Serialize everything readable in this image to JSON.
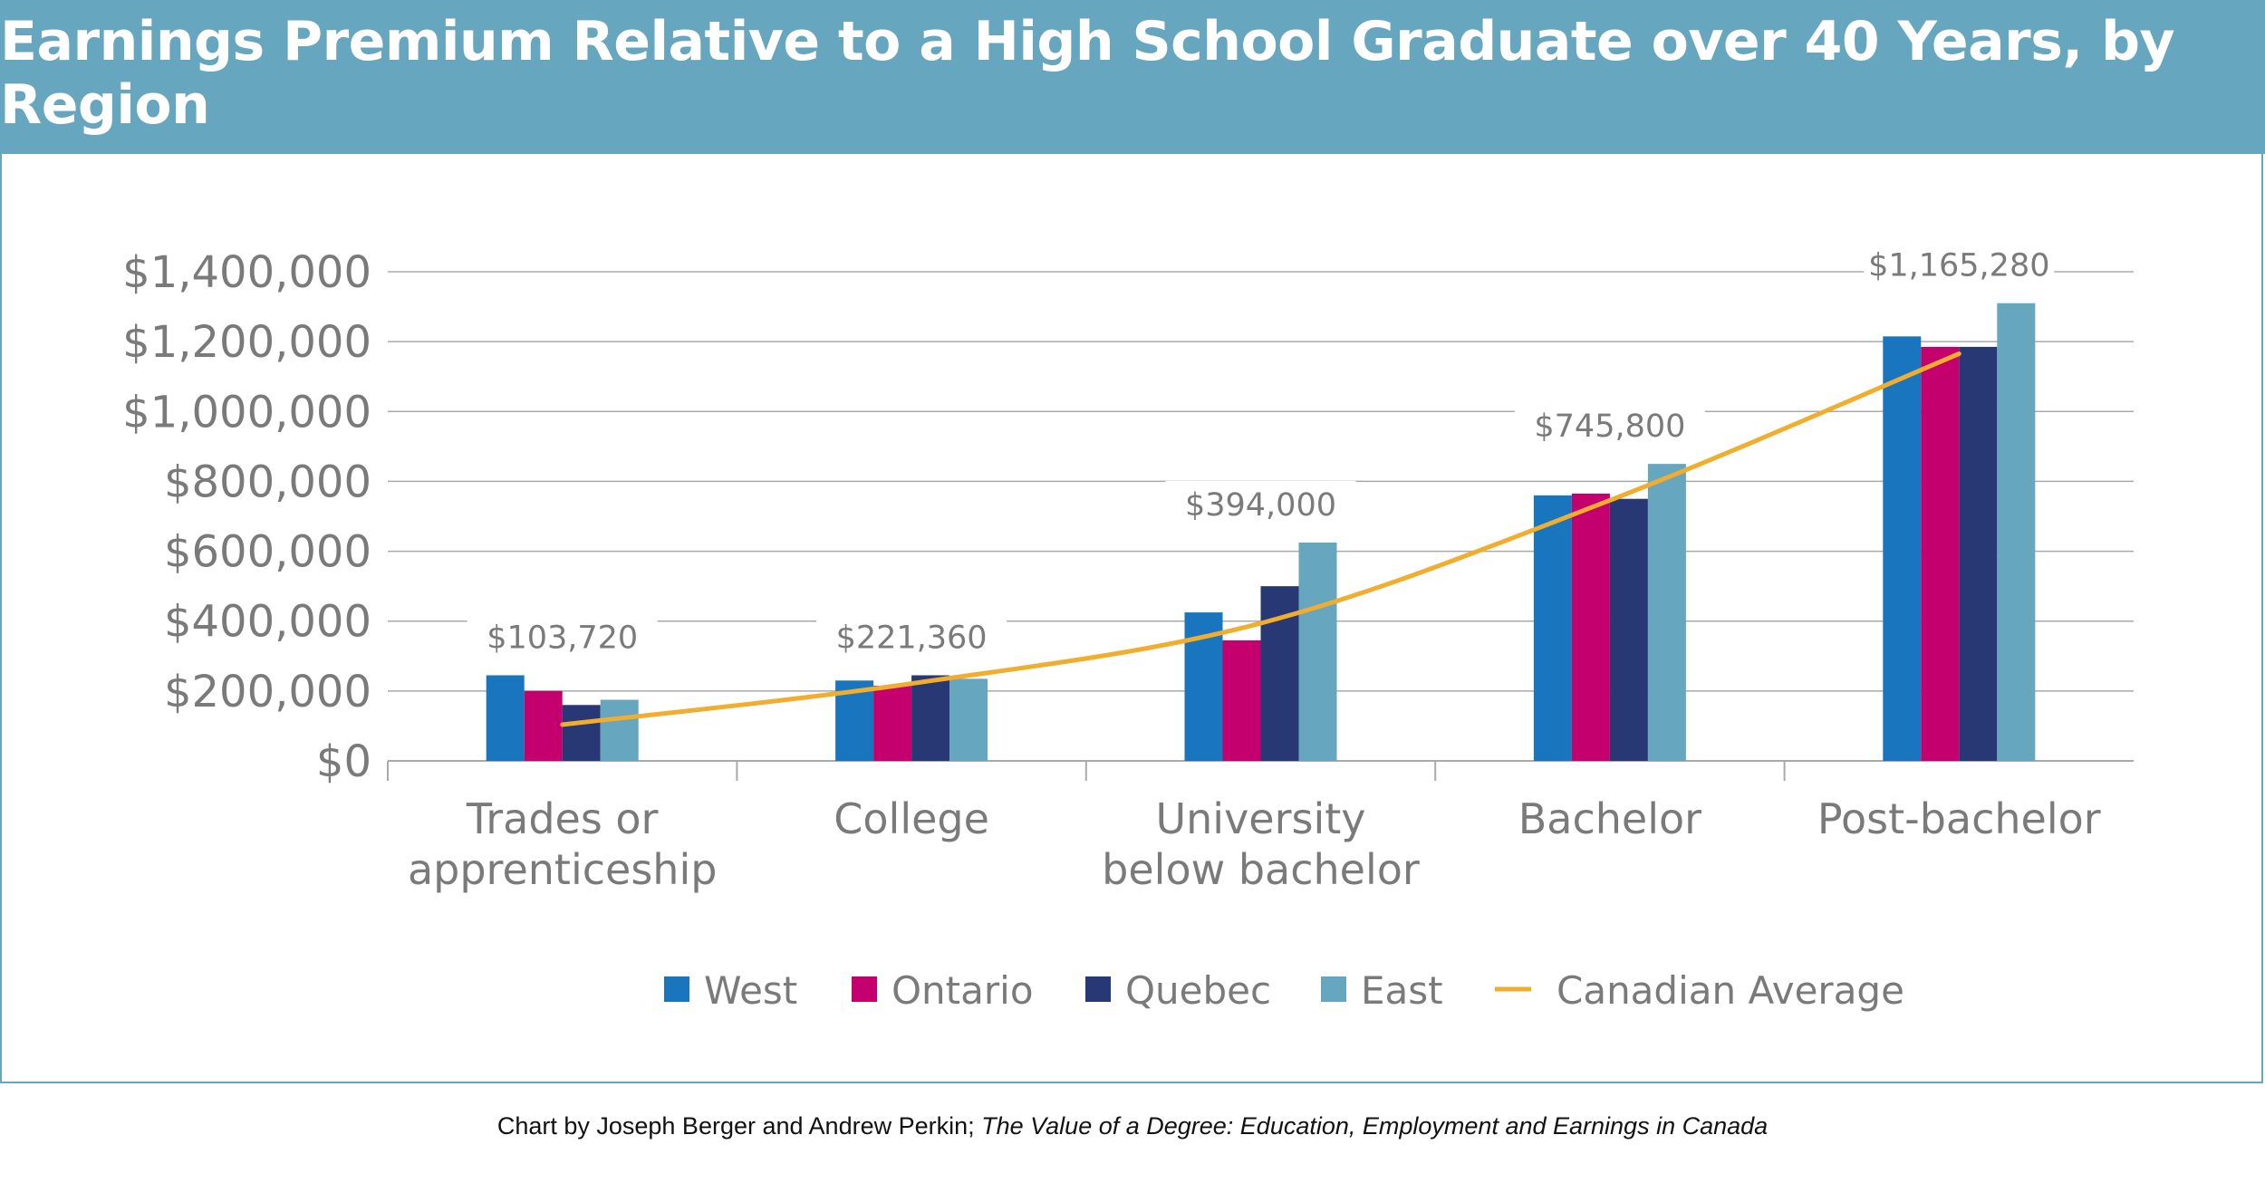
{
  "title": "Earnings Premium Relative to a High School Graduate over 40 Years, by Region",
  "credit": {
    "prefix": "Chart by Joseph Berger and Andrew Perkin; ",
    "source_italic": "The Value of a  Degree: Education, Employment and Earnings in Canada"
  },
  "colors": {
    "header_band": "#66a6bf",
    "gridline": "#aaaaaa",
    "axis_text": "#7a7a7a",
    "average_line": "#f0ad2e"
  },
  "chart_data": {
    "type": "bar",
    "categories": [
      [
        "Trades or",
        "apprenticeship"
      ],
      [
        "College"
      ],
      [
        "University",
        "below bachelor"
      ],
      [
        "Bachelor"
      ],
      [
        "Post-bachelor"
      ]
    ],
    "series": [
      {
        "name": "West",
        "color": "#1a75bf",
        "values": [
          245000,
          230000,
          425000,
          760000,
          1215000
        ]
      },
      {
        "name": "Ontario",
        "color": "#c4006e",
        "values": [
          200000,
          215000,
          345000,
          765000,
          1185000
        ]
      },
      {
        "name": "Quebec",
        "color": "#283874",
        "values": [
          160000,
          245000,
          500000,
          750000,
          1185000
        ]
      },
      {
        "name": "East",
        "color": "#66a6bf",
        "values": [
          175000,
          235000,
          625000,
          850000,
          1310000
        ]
      }
    ],
    "line_series": {
      "name": "Canadian Average",
      "color": "#f0ad2e",
      "values": [
        103720,
        221360,
        394000,
        745800,
        1165280
      ]
    },
    "data_labels": [
      "$103,720",
      "$221,360",
      "$394,000",
      "$745,800",
      "$1,165,280"
    ],
    "y_ticks": [
      0,
      200000,
      400000,
      600000,
      800000,
      1000000,
      1200000,
      1400000
    ],
    "y_tick_labels": [
      "$0",
      "$200,000",
      "$400,000",
      "$600,000",
      "$800,000",
      "$1,000,000",
      "$1,200,000",
      "$1,400,000"
    ],
    "ylim": [
      0,
      1400000
    ],
    "grid": true,
    "legend_position": "bottom"
  }
}
